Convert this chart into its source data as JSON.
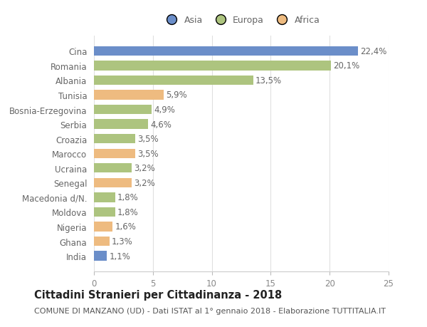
{
  "categories": [
    "Cina",
    "Romania",
    "Albania",
    "Tunisia",
    "Bosnia-Erzegovina",
    "Serbia",
    "Croazia",
    "Marocco",
    "Ucraina",
    "Senegal",
    "Macedonia d/N.",
    "Moldova",
    "Nigeria",
    "Ghana",
    "India"
  ],
  "values": [
    22.4,
    20.1,
    13.5,
    5.9,
    4.9,
    4.6,
    3.5,
    3.5,
    3.2,
    3.2,
    1.8,
    1.8,
    1.6,
    1.3,
    1.1
  ],
  "labels": [
    "22,4%",
    "20,1%",
    "13,5%",
    "5,9%",
    "4,9%",
    "4,6%",
    "3,5%",
    "3,5%",
    "3,2%",
    "3,2%",
    "1,8%",
    "1,8%",
    "1,6%",
    "1,3%",
    "1,1%"
  ],
  "colors": [
    "#6b8ec9",
    "#adc47f",
    "#adc47f",
    "#eebb80",
    "#adc47f",
    "#adc47f",
    "#adc47f",
    "#eebb80",
    "#adc47f",
    "#eebb80",
    "#adc47f",
    "#adc47f",
    "#eebb80",
    "#eebb80",
    "#6b8ec9"
  ],
  "legend_labels": [
    "Asia",
    "Europa",
    "Africa"
  ],
  "legend_colors": [
    "#6b8ec9",
    "#adc47f",
    "#eebb80"
  ],
  "xlim": [
    0,
    25
  ],
  "xticks": [
    0,
    5,
    10,
    15,
    20,
    25
  ],
  "title": "Cittadini Stranieri per Cittadinanza - 2018",
  "subtitle": "COMUNE DI MANZANO (UD) - Dati ISTAT al 1° gennaio 2018 - Elaborazione TUTTITALIA.IT",
  "background_color": "#ffffff",
  "bar_height": 0.65,
  "grid_color": "#e0e0e0",
  "label_fontsize": 8.5,
  "ytick_fontsize": 8.5,
  "xtick_fontsize": 8.5,
  "title_fontsize": 10.5,
  "subtitle_fontsize": 8.0
}
